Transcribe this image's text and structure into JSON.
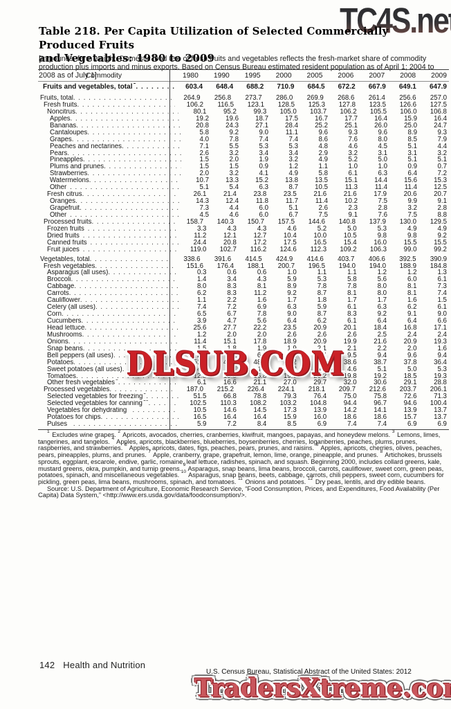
{
  "watermarks": {
    "top": "TC4S.net",
    "middle": "DLSUB.COM",
    "bottom": "TradersXtreme.com",
    "red": "#cb2127",
    "top_gray": "#323235"
  },
  "title": {
    "line1": "Table 218. Per Capita Utilization of Selected Commercially Produced Fruits",
    "line2": "and Vegetables: 1980 to 2009"
  },
  "headnote": "[In pounds, farm weight. Domestic food use of fresh fruits and vegetables reflects the fresh-market share of commodity production plus imports and minus exports. Based on Census Bureau estimated resident population as of April 1; 2004 to 2008 as of July 1]",
  "table": {
    "commodity_header": "Commodity",
    "years": [
      "1980",
      "1990",
      "1995",
      "2000",
      "2005",
      "2006",
      "2007",
      "2008",
      "2009"
    ],
    "rows": [
      {
        "label": "Fruits and vegetables, total",
        "sup": "1",
        "indent": "b",
        "bold": true,
        "values": [
          "603.4",
          "648.4",
          "688.2",
          "710.9",
          "684.5",
          "672.2",
          "667.9",
          "649.1",
          "647.9"
        ]
      },
      {
        "label": "Fruits, total",
        "indent": "0",
        "gap": true,
        "values": [
          "264.9",
          "256.8",
          "273.7",
          "286.0",
          "269.9",
          "268.6",
          "261.4",
          "256.6",
          "257.0"
        ]
      },
      {
        "label": "Fresh fruits",
        "indent": "1",
        "values": [
          "106.2",
          "116.5",
          "123.1",
          "128.5",
          "125.3",
          "127.8",
          "123.5",
          "126.6",
          "127.5"
        ]
      },
      {
        "label": "Noncitrus",
        "indent": "2",
        "values": [
          "80.1",
          "95.2",
          "99.3",
          "105.0",
          "103.7",
          "106.2",
          "105.5",
          "106.0",
          "106.8"
        ]
      },
      {
        "label": "Apples",
        "indent": "3",
        "values": [
          "19.2",
          "19.6",
          "18.7",
          "17.5",
          "16.7",
          "17.7",
          "16.4",
          "15.9",
          "16.4"
        ]
      },
      {
        "label": "Bananas",
        "indent": "3",
        "values": [
          "20.8",
          "24.3",
          "27.1",
          "28.4",
          "25.2",
          "25.1",
          "26.0",
          "25.0",
          "24.7"
        ]
      },
      {
        "label": "Cantaloupes",
        "indent": "3",
        "values": [
          "5.8",
          "9.2",
          "9.0",
          "11.1",
          "9.6",
          "9.3",
          "9.6",
          "8.9",
          "9.3"
        ]
      },
      {
        "label": "Grapes",
        "indent": "3",
        "values": [
          "4.0",
          "7.8",
          "7.4",
          "7.4",
          "8.6",
          "7.6",
          "8.0",
          "8.5",
          "7.9"
        ]
      },
      {
        "label": "Peaches and nectarines",
        "indent": "3",
        "values": [
          "7.1",
          "5.5",
          "5.3",
          "5.3",
          "4.8",
          "4.6",
          "4.5",
          "5.1",
          "4.4"
        ]
      },
      {
        "label": "Pears",
        "indent": "3",
        "values": [
          "2.6",
          "3.2",
          "3.4",
          "3.4",
          "2.9",
          "3.2",
          "3.1",
          "3.1",
          "3.2"
        ]
      },
      {
        "label": "Pineapples",
        "indent": "3",
        "values": [
          "1.5",
          "2.0",
          "1.9",
          "3.2",
          "4.9",
          "5.2",
          "5.0",
          "5.1",
          "5.1"
        ]
      },
      {
        "label": "Plums and prunes",
        "indent": "3",
        "values": [
          "1.5",
          "1.5",
          "0.9",
          "1.2",
          "1.1",
          "1.0",
          "1.0",
          "0.9",
          "0.7"
        ]
      },
      {
        "label": "Strawberries",
        "indent": "3",
        "values": [
          "2.0",
          "3.2",
          "4.1",
          "4.9",
          "5.8",
          "6.1",
          "6.3",
          "6.4",
          "7.2"
        ]
      },
      {
        "label": "Watermelons",
        "indent": "3",
        "values": [
          "10.7",
          "13.3",
          "15.2",
          "13.8",
          "13.5",
          "15.1",
          "14.4",
          "15.6",
          "15.3"
        ]
      },
      {
        "label": "Other",
        "sup": "2",
        "indent": "3",
        "values": [
          "5.1",
          "5.4",
          "6.3",
          "8.7",
          "10.5",
          "11.3",
          "11.4",
          "11.4",
          "12.5"
        ]
      },
      {
        "label": "Fresh citrus",
        "indent": "2",
        "values": [
          "26.1",
          "21.4",
          "23.8",
          "23.5",
          "21.6",
          "21.6",
          "17.9",
          "20.6",
          "20.7"
        ]
      },
      {
        "label": "Oranges",
        "indent": "3",
        "values": [
          "14.3",
          "12.4",
          "11.8",
          "11.7",
          "11.4",
          "10.2",
          "7.5",
          "9.9",
          "9.1"
        ]
      },
      {
        "label": "Grapefruit",
        "indent": "3",
        "values": [
          "7.3",
          "4.4",
          "6.0",
          "5.1",
          "2.6",
          "2.3",
          "2.8",
          "3.2",
          "2.8"
        ]
      },
      {
        "label": "Other",
        "sup": "3",
        "indent": "3",
        "values": [
          "4.5",
          "4.6",
          "6.0",
          "6.7",
          "7.5",
          "9.1",
          "7.6",
          "7.5",
          "8.8"
        ]
      },
      {
        "label": "Processed fruits",
        "indent": "1",
        "values": [
          "158.7",
          "140.3",
          "150.7",
          "157.5",
          "144.6",
          "140.8",
          "137.9",
          "130.0",
          "129.5"
        ]
      },
      {
        "label": "Frozen fruits",
        "sup": "4",
        "indent": "2",
        "values": [
          "3.3",
          "4.3",
          "4.3",
          "4.6",
          "5.2",
          "5.0",
          "5.3",
          "4.9",
          "4.9"
        ]
      },
      {
        "label": "Dried fruits",
        "sup": "5",
        "indent": "2",
        "values": [
          "11.2",
          "12.1",
          "12.7",
          "10.4",
          "10.0",
          "10.5",
          "9.8",
          "9.8",
          "9.2"
        ]
      },
      {
        "label": "Canned fruits",
        "sup": "6",
        "indent": "2",
        "values": [
          "24.4",
          "20.8",
          "17.2",
          "17.5",
          "16.5",
          "15.4",
          "16.0",
          "15.5",
          "15.5"
        ]
      },
      {
        "label": "Fruit juices",
        "sup": "7",
        "indent": "2",
        "values": [
          "119.0",
          "102.7",
          "116.2",
          "124.6",
          "112.3",
          "109.2",
          "106.3",
          "99.0",
          "99.2"
        ]
      },
      {
        "label": "Vegetables, total",
        "indent": "0",
        "gap": true,
        "values": [
          "338.6",
          "391.6",
          "414.5",
          "424.9",
          "414.6",
          "403.7",
          "406.6",
          "392.5",
          "390.9"
        ]
      },
      {
        "label": "Fresh vegetables",
        "indent": "1",
        "values": [
          "151.6",
          "176.4",
          "188.1",
          "200.7",
          "196.5",
          "194.0",
          "194.0",
          "188.9",
          "184.8"
        ]
      },
      {
        "label": "Asparagus (all uses)",
        "indent": "2",
        "values": [
          "0.3",
          "0.6",
          "0.6",
          "1.0",
          "1.1",
          "1.1",
          "1.2",
          "1.2",
          "1.3"
        ]
      },
      {
        "label": "Broccoli",
        "indent": "2",
        "values": [
          "1.4",
          "3.4",
          "4.3",
          "5.9",
          "5.3",
          "5.8",
          "5.6",
          "6.0",
          "6.1"
        ]
      },
      {
        "label": "Cabbage",
        "indent": "2",
        "values": [
          "8.0",
          "8.3",
          "8.1",
          "8.9",
          "7.8",
          "7.8",
          "8.0",
          "8.1",
          "7.3"
        ]
      },
      {
        "label": "Carrots",
        "indent": "2",
        "values": [
          "6.2",
          "8.3",
          "11.2",
          "9.2",
          "8.7",
          "8.1",
          "8.0",
          "8.1",
          "7.4"
        ]
      },
      {
        "label": "Cauliflower",
        "indent": "2",
        "values": [
          "1.1",
          "2.2",
          "1.6",
          "1.7",
          "1.8",
          "1.7",
          "1.7",
          "1.6",
          "1.5"
        ]
      },
      {
        "label": "Celery (all uses)",
        "indent": "2",
        "values": [
          "7.4",
          "7.2",
          "6.9",
          "6.3",
          "5.9",
          "6.1",
          "6.3",
          "6.2",
          "6.1"
        ]
      },
      {
        "label": "Corn",
        "indent": "2",
        "values": [
          "6.5",
          "6.7",
          "7.8",
          "9.0",
          "8.7",
          "8.3",
          "9.2",
          "9.1",
          "9.0"
        ]
      },
      {
        "label": "Cucumbers",
        "indent": "2",
        "values": [
          "3.9",
          "4.7",
          "5.6",
          "6.4",
          "6.2",
          "6.1",
          "6.4",
          "6.4",
          "6.6"
        ]
      },
      {
        "label": "Head lettuce",
        "indent": "2",
        "values": [
          "25.6",
          "27.7",
          "22.2",
          "23.5",
          "20.9",
          "20.1",
          "18.4",
          "16.8",
          "17.1"
        ]
      },
      {
        "label": "Mushrooms",
        "indent": "2",
        "values": [
          "1.2",
          "2.0",
          "2.0",
          "2.6",
          "2.6",
          "2.6",
          "2.5",
          "2.4",
          "2.4"
        ]
      },
      {
        "label": "Onions",
        "indent": "2",
        "values": [
          "11.4",
          "15.1",
          "17.8",
          "18.9",
          "20.9",
          "19.9",
          "21.6",
          "20.9",
          "19.3"
        ]
      },
      {
        "label": "Snap beans",
        "indent": "2",
        "values": [
          "1.5",
          "1.8",
          "1.9",
          "1.9",
          "2.1",
          "2.1",
          "2.2",
          "2.0",
          "1.6"
        ]
      },
      {
        "label": "Bell peppers (all uses)",
        "indent": "2",
        "values": [
          "2.8",
          "6.1",
          "6.8",
          "8.1",
          "9.4",
          "9.5",
          "9.4",
          "9.6",
          "9.4"
        ]
      },
      {
        "label": "Potatoes",
        "indent": "2",
        "values": [
          "51.1",
          "46.7",
          "48.8",
          "47.2",
          "41.6",
          "38.6",
          "38.7",
          "37.8",
          "36.4"
        ]
      },
      {
        "label": "Sweet potatoes (all uses)",
        "indent": "2",
        "values": [
          "4.4",
          "4.4",
          "4.2",
          "4.2",
          "4.5",
          "4.6",
          "5.1",
          "5.0",
          "5.3"
        ]
      },
      {
        "label": "Tomatoes",
        "indent": "2",
        "values": [
          "12.8",
          "15.5",
          "16.8",
          "19.0",
          "20.2",
          "19.8",
          "19.2",
          "18.5",
          "19.3"
        ]
      },
      {
        "label": "Other fresh vegetables",
        "sup": "8",
        "indent": "2",
        "values": [
          "6.1",
          "16.6",
          "21.1",
          "27.0",
          "29.7",
          "32.0",
          "30.6",
          "29.1",
          "28.8"
        ]
      },
      {
        "label": "Processed vegetables",
        "indent": "1",
        "values": [
          "187.0",
          "215.2",
          "226.4",
          "224.1",
          "218.1",
          "209.7",
          "212.6",
          "203.7",
          "206.1"
        ]
      },
      {
        "label": "Selected vegetables for freezing",
        "sup": "9",
        "indent": "2",
        "values": [
          "51.5",
          "66.8",
          "78.8",
          "79.3",
          "76.4",
          "75.0",
          "75.8",
          "72.6",
          "71.3"
        ]
      },
      {
        "label": "Selected vegetables for canning",
        "sup": "10",
        "indent": "2",
        "values": [
          "102.5",
          "110.3",
          "108.2",
          "103.2",
          "104.8",
          "94.4",
          "96.7",
          "94.6",
          "100.4"
        ]
      },
      {
        "label": "Vegetables for dehydrating",
        "sup": "11",
        "indent": "2",
        "values": [
          "10.5",
          "14.6",
          "14.5",
          "17.3",
          "13.9",
          "14.2",
          "14.1",
          "13.9",
          "13.7"
        ]
      },
      {
        "label": "Potatoes for chips",
        "indent": "2",
        "values": [
          "16.5",
          "16.4",
          "16.4",
          "15.9",
          "16.0",
          "18.6",
          "18.6",
          "15.7",
          "13.7"
        ]
      },
      {
        "label": "Pulses",
        "sup": "12",
        "indent": "2",
        "values": [
          "5.9",
          "7.2",
          "8.4",
          "8.5",
          "6.9",
          "7.4",
          "7.4",
          "6.9",
          "6.9"
        ]
      }
    ]
  },
  "footnotes": [
    {
      "sup": "1",
      "text": "Excludes wine grapes."
    },
    {
      "sup": "2",
      "text": "Apricots, avocados, cherries, cranberries, kiwifruit, mangoes, papayas, and honeydew melons."
    },
    {
      "sup": "3",
      "text": "Lemons, limes, tangerines, and tangelos."
    },
    {
      "sup": "4",
      "text": "Apples, apricots, blackberries, blueberries, boysenberries, cherries, loganberries, peaches, plums, prunes, raspberries, and strawberries."
    },
    {
      "sup": "5",
      "text": "Apples, apricots, dates, figs, peaches, pears, prunes, and raisins."
    },
    {
      "sup": "6",
      "text": "Apples, apricots, cherries, olives, peaches, pears, pineapples, plums, and prunes."
    },
    {
      "sup": "7",
      "text": "Apple, cranberry, grape, grapefruit, lemon, lime, orange, pineapple, and prunes."
    },
    {
      "sup": "8",
      "text": "Artichokes, brussels sprouts, eggplant, escarole, endive, garlic, romaine, leaf lettuce, radishes, spinach, and squash. Beginning 2000, includes collard greens, kale, mustard greens, okra, pumpkin, and turnip greens."
    },
    {
      "sup": "9",
      "text": "Asparagus, snap beans, lima beans, broccoli, carrots, cauliflower, sweet corn, green peas, potatoes, spinach, and miscellaneous vegetables."
    },
    {
      "sup": "10",
      "text": "Asparagus, snap beans, beets, cabbage, carrots, chili peppers, sweet corn, cucumbers for pickling, green peas, lima beans, mushrooms, spinach, and tomatoes."
    },
    {
      "sup": "11",
      "text": "Onions and potatoes."
    },
    {
      "sup": "12",
      "text": "Dry peas, lentils, and dry edible beans."
    }
  ],
  "source": "Source: U.S. Department of Agriculture, Economic Research Service, “Food Consumption, Prices, and Expenditures, Food Availability (Per Capita) Data System,” <http://www.ers.usda.gov/data/foodconsumption/>.",
  "footer": {
    "page_number": "142",
    "section": "Health and Nutrition",
    "right": "U.S. Census Bureau, Statistical Abstract of the United States: 2012"
  }
}
